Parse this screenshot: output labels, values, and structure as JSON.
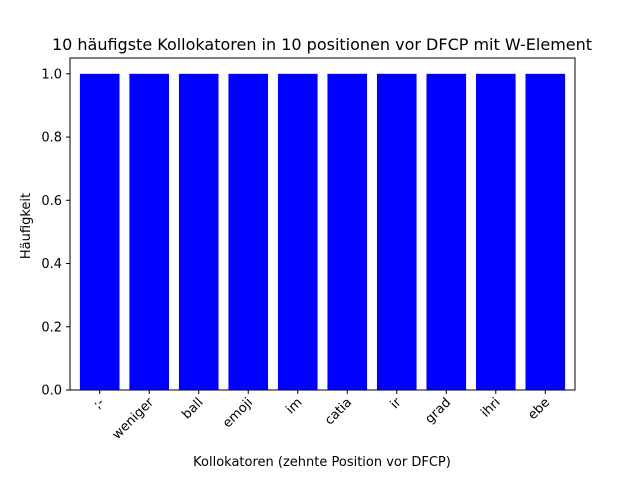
{
  "chart_data": {
    "type": "bar",
    "title": "10 häufigste Kollokatoren in 10 positionen vor DFCP mit W-Element",
    "xlabel": "Kollokatoren (zehnte Position vor DFCP)",
    "ylabel": "Häufigkeit",
    "categories": [
      ";-",
      "weniger",
      "ball",
      "emoji",
      "im",
      "catia",
      "ir",
      "grad",
      "ihri",
      "ebe"
    ],
    "values": [
      1,
      1,
      1,
      1,
      1,
      1,
      1,
      1,
      1,
      1
    ],
    "ylim": [
      0,
      1.05
    ],
    "yticks": [
      "0.0",
      "0.2",
      "0.4",
      "0.6",
      "0.8",
      "1.0"
    ],
    "bar_color": "#0000ff",
    "grid": false,
    "legend": "none"
  }
}
